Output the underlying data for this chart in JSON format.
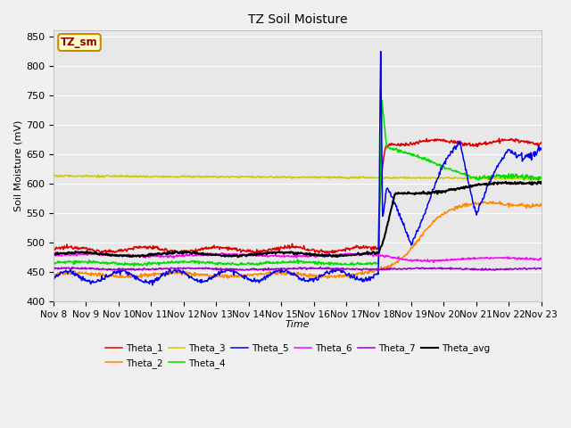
{
  "title": "TZ Soil Moisture",
  "ylabel": "Soil Moisture (mV)",
  "xlabel": "Time",
  "ylim": [
    400,
    860
  ],
  "yticks": [
    400,
    450,
    500,
    550,
    600,
    650,
    700,
    750,
    800,
    850
  ],
  "x_labels": [
    "Nov 8",
    "Nov 9",
    "Nov 10",
    "Nov 11",
    "Nov 12",
    "Nov 13",
    "Nov 14",
    "Nov 15",
    "Nov 16",
    "Nov 17",
    "Nov 18",
    "Nov 19",
    "Nov 20",
    "Nov 21",
    "Nov 22",
    "Nov 23"
  ],
  "series_colors": {
    "Theta_1": "#dd0000",
    "Theta_2": "#ff8800",
    "Theta_3": "#cccc00",
    "Theta_4": "#00dd00",
    "Theta_5": "#0000ee",
    "Theta_6": "#ff00ff",
    "Theta_7": "#9900cc",
    "Theta_avg": "#000000"
  },
  "legend_label": "TZ_sm",
  "fig_bg": "#f0f0f0",
  "plot_bg": "#e8e8e8",
  "grid_color": "#ffffff"
}
